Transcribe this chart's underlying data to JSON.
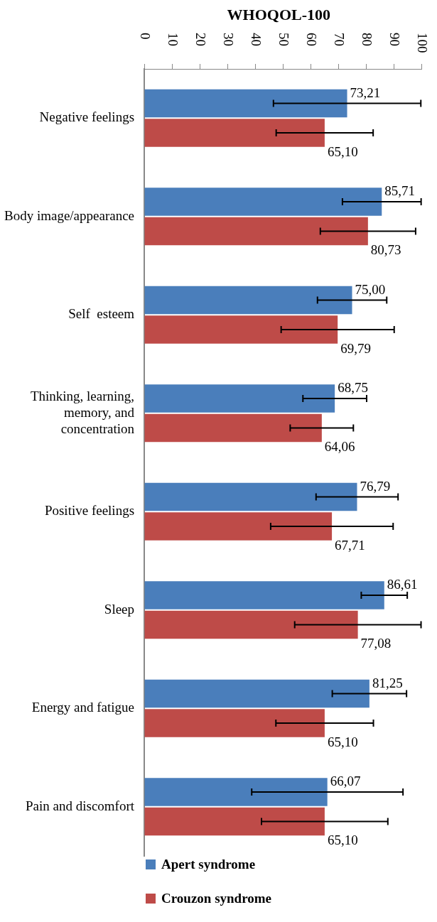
{
  "chart_data": {
    "type": "bar",
    "orientation": "horizontal",
    "title": "WHOQOL-100",
    "categories": [
      "Negative feelings",
      "Body image/appearance",
      "Self  esteem",
      "Thinking, learning, memory, and concentration",
      "Positive feelings",
      "Sleep",
      "Energy and fatigue",
      "Pain and discomfort"
    ],
    "series": [
      {
        "name": "Apert syndrome",
        "color": "#4a7ebb",
        "values": [
          73.21,
          85.71,
          75.0,
          68.75,
          76.79,
          86.61,
          81.25,
          66.07
        ],
        "errors": [
          26.6,
          14.2,
          12.5,
          11.5,
          14.8,
          8.3,
          13.4,
          27.3
        ],
        "value_labels": [
          "73,21",
          "85,71",
          "75,00",
          "68,75",
          "76,79",
          "86,61",
          "81,25",
          "66,07"
        ]
      },
      {
        "name": "Crouzon syndrome",
        "color": "#be4b48",
        "values": [
          65.1,
          80.73,
          69.79,
          64.06,
          67.71,
          77.08,
          65.1,
          65.1
        ],
        "errors": [
          17.5,
          17.2,
          20.4,
          11.4,
          22.1,
          22.8,
          17.6,
          22.8
        ],
        "value_labels": [
          "65,10",
          "80,73",
          "69,79",
          "64,06",
          "67,71",
          "77,08",
          "65,10",
          "65,10"
        ]
      }
    ],
    "xlim": [
      0,
      100
    ],
    "xticks": [
      0,
      10,
      20,
      30,
      40,
      50,
      60,
      70,
      80,
      90,
      100
    ],
    "grid": false,
    "legend": "bottom"
  }
}
